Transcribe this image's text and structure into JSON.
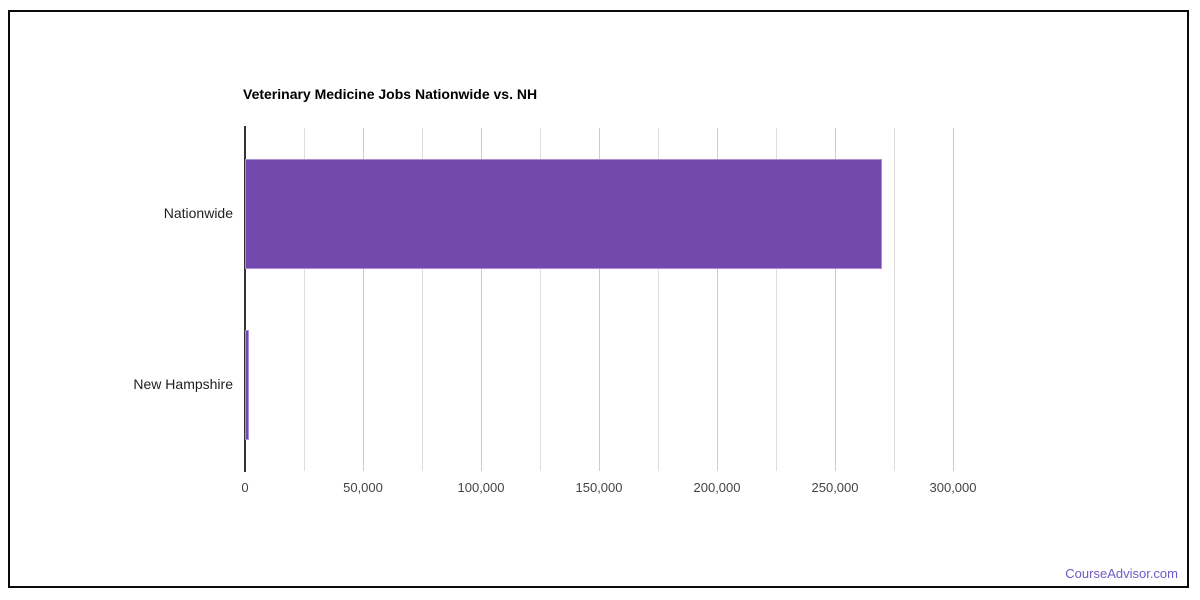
{
  "chart_data": {
    "type": "bar",
    "orientation": "horizontal",
    "title": "Veterinary Medicine Jobs Nationwide vs. NH",
    "categories": [
      "Nationwide",
      "New Hampshire"
    ],
    "values": [
      270000,
      1500
    ],
    "xlabel": "",
    "ylabel": "",
    "xlim": [
      0,
      300000
    ],
    "x_major_step": 50000,
    "x_minor_step": 25000,
    "x_tick_labels": [
      "0",
      "50,000",
      "100,000",
      "150,000",
      "200,000",
      "250,000",
      "300,000"
    ],
    "grid": true,
    "legend_position": "none",
    "bar_color": "#7449ad",
    "bar_border_color": "#a98fd8",
    "major_gridline_color": "#cccccc",
    "minor_gridline_color": "#dedede",
    "baseline_color": "#333333"
  },
  "footer": {
    "link_label": "CourseAdvisor.com",
    "link_color": "#7158c9"
  }
}
